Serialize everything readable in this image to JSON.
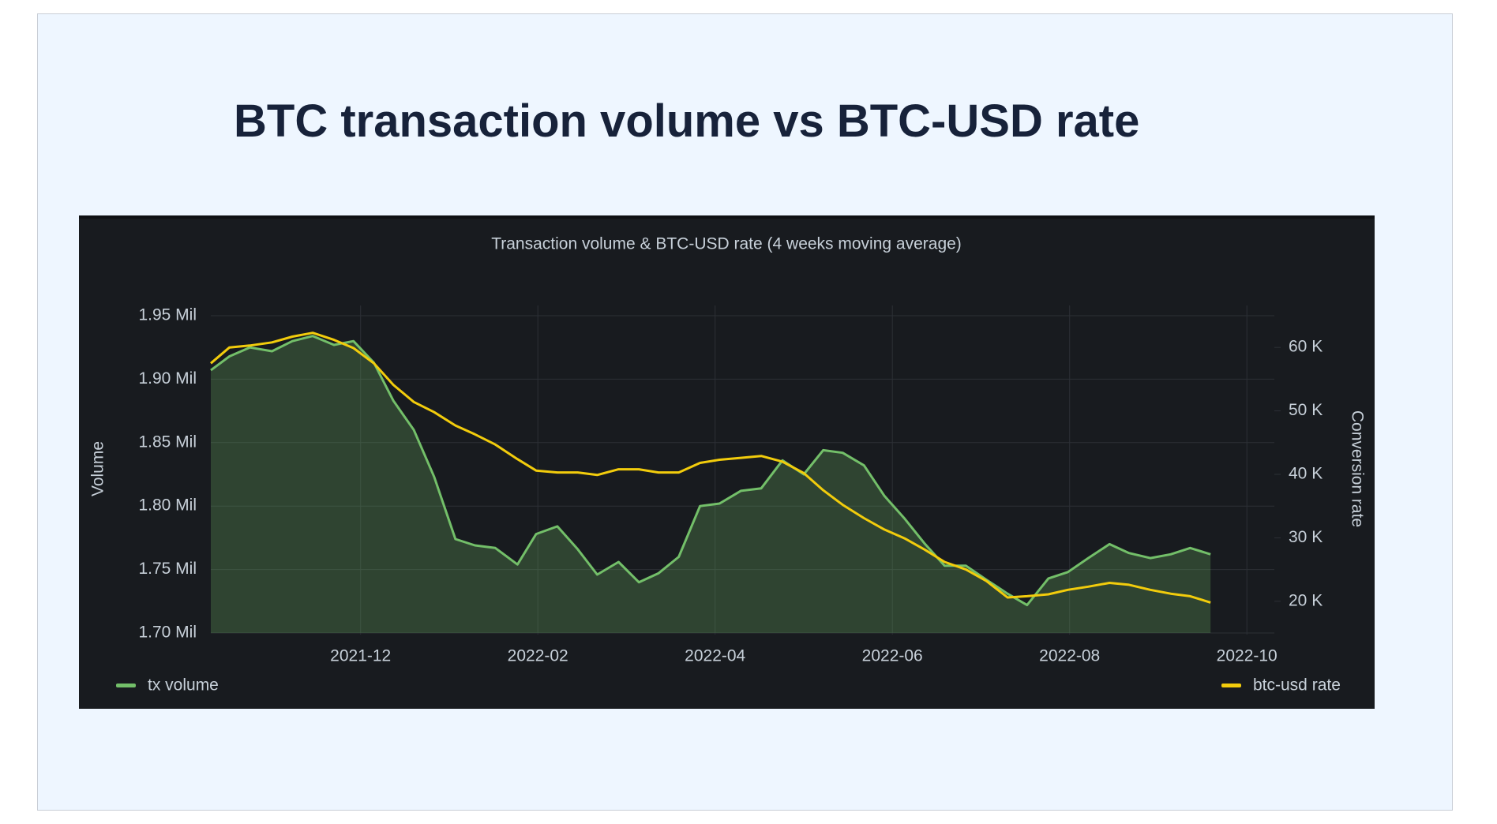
{
  "page": {
    "title": "BTC transaction volume vs BTC-USD rate"
  },
  "chart_data": {
    "type": "line",
    "title": "Transaction volume & BTC-USD rate (4 weeks moving average)",
    "y_label": "Volume",
    "y2_label": "Conversion rate",
    "x": [
      10.31,
      10.52,
      10.75,
      11.0,
      11.23,
      11.46,
      11.7,
      11.92,
      12.15,
      12.37,
      12.6,
      12.83,
      13.07,
      13.29,
      13.52,
      13.77,
      13.98,
      14.22,
      14.45,
      14.67,
      14.91,
      15.14,
      15.36,
      15.59,
      15.83,
      16.05,
      16.29,
      16.52,
      16.76,
      17.0,
      17.22,
      17.44,
      17.68,
      17.91,
      18.14,
      18.37,
      18.59,
      18.83,
      19.06,
      19.3,
      19.52,
      19.76,
      19.98,
      20.21,
      20.45,
      20.67,
      20.91,
      21.14,
      21.36,
      21.59
    ],
    "xlim": [
      10.31,
      22.31
    ],
    "xticks": [
      {
        "value": 12,
        "label": "2021-12"
      },
      {
        "value": 14,
        "label": "2022-02"
      },
      {
        "value": 16,
        "label": "2022-04"
      },
      {
        "value": 18,
        "label": "2022-06"
      },
      {
        "value": 20,
        "label": "2022-08"
      },
      {
        "value": 22,
        "label": "2022-10"
      }
    ],
    "ylim": [
      1.7,
      1.95
    ],
    "yticks": [
      {
        "value": 1.7,
        "label": "1.70 Mil"
      },
      {
        "value": 1.75,
        "label": "1.75 Mil"
      },
      {
        "value": 1.8,
        "label": "1.80 Mil"
      },
      {
        "value": 1.85,
        "label": "1.85 Mil"
      },
      {
        "value": 1.9,
        "label": "1.90 Mil"
      },
      {
        "value": 1.95,
        "label": "1.95 Mil"
      }
    ],
    "y2lim": [
      15000,
      65000
    ],
    "y2ticks": [
      {
        "value": 20000,
        "label": "20 K"
      },
      {
        "value": 30000,
        "label": "30 K"
      },
      {
        "value": 40000,
        "label": "40 K"
      },
      {
        "value": 50000,
        "label": "50 K"
      },
      {
        "value": 60000,
        "label": "60 K"
      }
    ],
    "grid": true,
    "series": [
      {
        "name": "tx volume",
        "color": "#73bf69",
        "fill": true,
        "values": [
          1.907,
          1.918,
          1.925,
          1.922,
          1.93,
          1.934,
          1.927,
          1.93,
          1.913,
          1.883,
          1.86,
          1.823,
          1.774,
          1.769,
          1.767,
          1.754,
          1.778,
          1.784,
          1.766,
          1.746,
          1.756,
          1.74,
          1.747,
          1.76,
          1.8,
          1.802,
          1.812,
          1.814,
          1.836,
          1.825,
          1.844,
          1.842,
          1.832,
          1.808,
          1.79,
          1.77,
          1.753,
          1.753,
          1.742,
          1.731,
          1.722,
          1.743,
          1.748,
          1.759,
          1.77,
          1.763,
          1.759,
          1.762,
          1.767,
          1.762
        ]
      },
      {
        "name": "btc-usd rate",
        "color": "#f2cc0c",
        "axis": "y2",
        "values": [
          57500,
          60000,
          60300,
          60800,
          61700,
          62300,
          61200,
          59900,
          57500,
          54100,
          51400,
          49800,
          47700,
          46300,
          44700,
          42400,
          40600,
          40300,
          40300,
          39900,
          40800,
          40800,
          40300,
          40300,
          41800,
          42300,
          42600,
          42900,
          42000,
          40200,
          37500,
          35200,
          33100,
          31300,
          29900,
          28100,
          26200,
          25000,
          23200,
          20600,
          20800,
          21100,
          21800,
          22300,
          22900,
          22600,
          21800,
          21200,
          20800,
          19800
        ]
      }
    ]
  }
}
